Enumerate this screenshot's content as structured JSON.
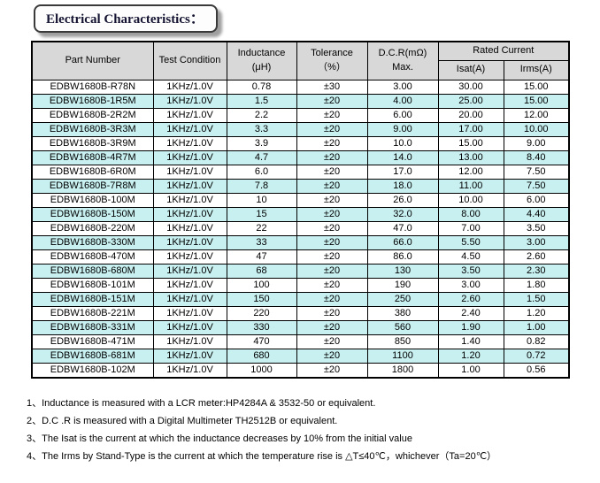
{
  "title": "Electrical Characteristics：",
  "colors": {
    "header_bg": "#d8d8d8",
    "alt_row_bg": "#c8f0f0",
    "border": "#000000",
    "title_color": "#141432"
  },
  "table": {
    "headers": {
      "part_number": "Part Number",
      "test_condition": "Test Condition",
      "inductance_line1": "Inductance",
      "inductance_line2": "(μH)",
      "tolerance_line1": "Tolerance",
      "tolerance_line2": "（%）",
      "dcr_line1": "D.C.R(mΩ)",
      "dcr_line2": "Max.",
      "rated_current": "Rated Current",
      "isat": "Isat(A)",
      "irms": "Irms(A)"
    },
    "rows": [
      [
        "EDBW1680B-R78N",
        "1KHz/1.0V",
        "0.78",
        "±30",
        "3.00",
        "30.00",
        "15.00"
      ],
      [
        "EDBW1680B-1R5M",
        "1KHz/1.0V",
        "1.5",
        "±20",
        "4.00",
        "25.00",
        "15.00"
      ],
      [
        "EDBW1680B-2R2M",
        "1KHz/1.0V",
        "2.2",
        "±20",
        "6.00",
        "20.00",
        "12.00"
      ],
      [
        "EDBW1680B-3R3M",
        "1KHz/1.0V",
        "3.3",
        "±20",
        "9.00",
        "17.00",
        "10.00"
      ],
      [
        "EDBW1680B-3R9M",
        "1KHz/1.0V",
        "3.9",
        "±20",
        "10.0",
        "15.00",
        "9.00"
      ],
      [
        "EDBW1680B-4R7M",
        "1KHz/1.0V",
        "4.7",
        "±20",
        "14.0",
        "13.00",
        "8.40"
      ],
      [
        "EDBW1680B-6R0M",
        "1KHz/1.0V",
        "6.0",
        "±20",
        "17.0",
        "12.00",
        "7.50"
      ],
      [
        "EDBW1680B-7R8M",
        "1KHz/1.0V",
        "7.8",
        "±20",
        "18.0",
        "11.00",
        "7.50"
      ],
      [
        "EDBW1680B-100M",
        "1KHz/1.0V",
        "10",
        "±20",
        "26.0",
        "10.00",
        "6.00"
      ],
      [
        "EDBW1680B-150M",
        "1KHz/1.0V",
        "15",
        "±20",
        "32.0",
        "8.00",
        "4.40"
      ],
      [
        "EDBW1680B-220M",
        "1KHz/1.0V",
        "22",
        "±20",
        "47.0",
        "7.00",
        "3.50"
      ],
      [
        "EDBW1680B-330M",
        "1KHz/1.0V",
        "33",
        "±20",
        "66.0",
        "5.50",
        "3.00"
      ],
      [
        "EDBW1680B-470M",
        "1KHz/1.0V",
        "47",
        "±20",
        "86.0",
        "4.50",
        "2.60"
      ],
      [
        "EDBW1680B-680M",
        "1KHz/1.0V",
        "68",
        "±20",
        "130",
        "3.50",
        "2.30"
      ],
      [
        "EDBW1680B-101M",
        "1KHz/1.0V",
        "100",
        "±20",
        "190",
        "3.00",
        "1.80"
      ],
      [
        "EDBW1680B-151M",
        "1KHz/1.0V",
        "150",
        "±20",
        "250",
        "2.60",
        "1.50"
      ],
      [
        "EDBW1680B-221M",
        "1KHz/1.0V",
        "220",
        "±20",
        "380",
        "2.40",
        "1.20"
      ],
      [
        "EDBW1680B-331M",
        "1KHz/1.0V",
        "330",
        "±20",
        "560",
        "1.90",
        "1.00"
      ],
      [
        "EDBW1680B-471M",
        "1KHz/1.0V",
        "470",
        "±20",
        "850",
        "1.40",
        "0.82"
      ],
      [
        "EDBW1680B-681M",
        "1KHz/1.0V",
        "680",
        "±20",
        "1100",
        "1.20",
        "0.72"
      ],
      [
        "EDBW1680B-102M",
        "1KHz/1.0V",
        "1000",
        "±20",
        "1800",
        "1.00",
        "0.56"
      ]
    ]
  },
  "footnotes": [
    "1、Inductance is measured with a LCR meter:HP4284A & 3532-50 or equivalent.",
    "2、D.C .R is measured with a Digital Multimeter TH2512B or equivalent.",
    "3、The Isat is the current at which the inductance decreases by 10% from the initial value",
    "4、The Irms by Stand-Type is the current at which the temperature rise is △T≤40℃，whichever（Ta=20℃）"
  ]
}
